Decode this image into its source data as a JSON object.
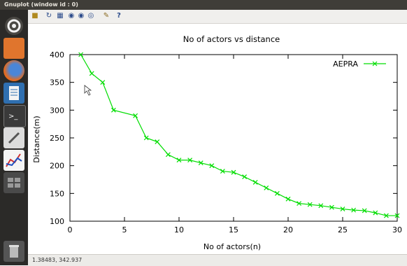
{
  "window": {
    "title": "Gnuplot (window id : 0)"
  },
  "toolbar": {
    "icons": [
      "copy-icon",
      "replot-icon",
      "grid-icon",
      "zoom-prev-icon",
      "zoom-next-icon",
      "autoscale-icon",
      "config-icon",
      "help-icon"
    ]
  },
  "launcher": {
    "icons": [
      "ubuntu-dash-icon",
      "files-icon",
      "firefox-icon",
      "writer-icon",
      "terminal-icon",
      "text-editor-icon",
      "gnuplot-icon",
      "workspace-switcher-icon",
      "trash-icon"
    ]
  },
  "status": {
    "coords": "1.38483, 342.937"
  },
  "chart_data": {
    "type": "line",
    "title": "No of actors vs distance",
    "xlabel": "No of actors(n)",
    "ylabel": "Distance(m)",
    "xlim": [
      0,
      30
    ],
    "ylim": [
      100,
      400
    ],
    "xticks": [
      0,
      5,
      10,
      15,
      20,
      25,
      30
    ],
    "yticks": [
      100,
      150,
      200,
      250,
      300,
      350,
      400
    ],
    "grid": false,
    "legend": "top-right",
    "series": [
      {
        "name": "AEPRA",
        "color": "#00dd00",
        "marker": "x",
        "x": [
          1,
          2,
          3,
          4,
          6,
          7,
          8,
          9,
          10,
          11,
          12,
          13,
          14,
          15,
          16,
          17,
          18,
          19,
          20,
          21,
          22,
          23,
          24,
          25,
          26,
          27,
          28,
          29,
          30
        ],
        "y": [
          400,
          366,
          350,
          300,
          290,
          250,
          243,
          220,
          210,
          210,
          205,
          200,
          190,
          188,
          180,
          170,
          160,
          150,
          140,
          132,
          130,
          128,
          125,
          122,
          120,
          119,
          115,
          110,
          110
        ]
      }
    ]
  }
}
